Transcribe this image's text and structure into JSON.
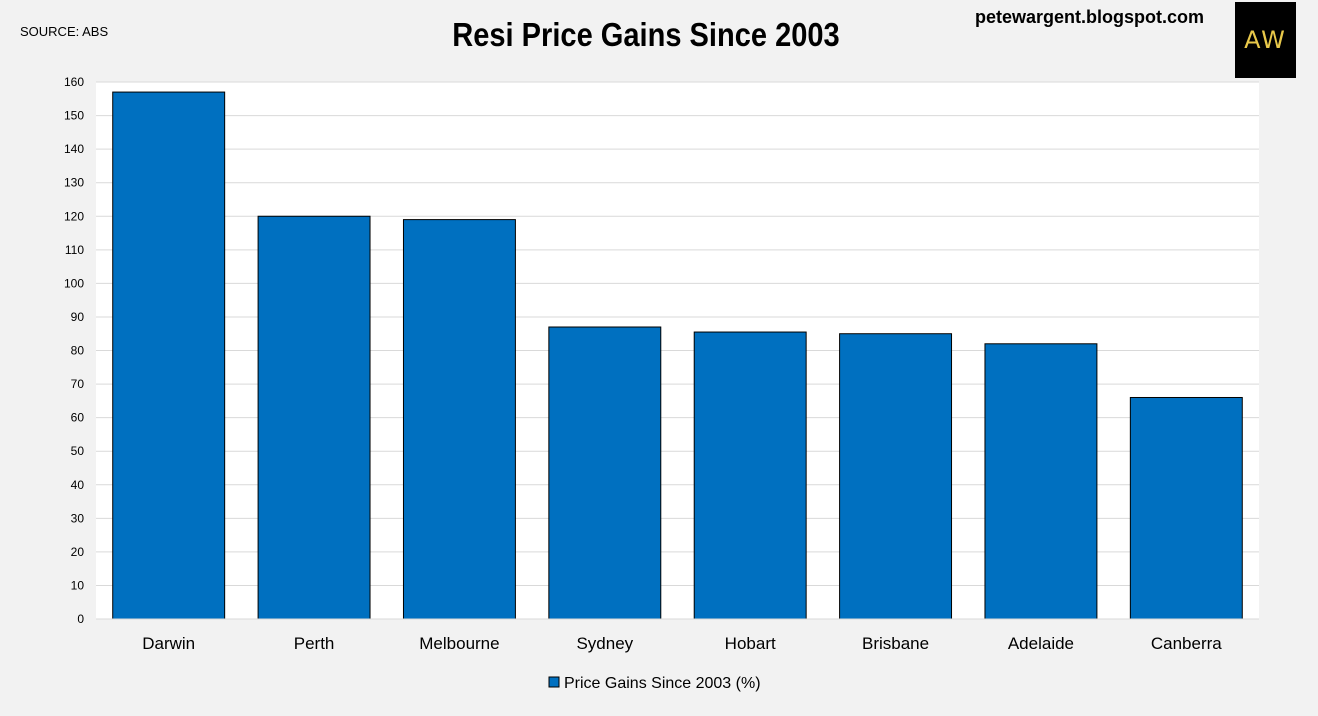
{
  "header": {
    "source": "SOURCE: ABS",
    "title": "Resi Price Gains Since 2003",
    "site": "petewargent.blogspot.com",
    "logo_text": "AW"
  },
  "colors": {
    "bar": "#0070c0",
    "bar_edge": "#000000",
    "grid": "#d9d9d9",
    "plot_bg": "#ffffff",
    "page_bg": "#f2f2f2",
    "logo_bg": "#000000",
    "logo_text": "#e8c84a"
  },
  "chart_data": {
    "type": "bar",
    "title": "Resi Price Gains Since 2003",
    "categories": [
      "Darwin",
      "Perth",
      "Melbourne",
      "Sydney",
      "Hobart",
      "Brisbane",
      "Adelaide",
      "Canberra"
    ],
    "series": [
      {
        "name": "Price Gains Since 2003 (%)",
        "values": [
          157,
          120,
          119,
          87,
          85.5,
          85,
          82,
          66
        ]
      }
    ],
    "xlabel": "",
    "ylabel": "",
    "ylim": [
      0,
      160
    ],
    "yticks": [
      0,
      10,
      20,
      30,
      40,
      50,
      60,
      70,
      80,
      90,
      100,
      110,
      120,
      130,
      140,
      150,
      160
    ],
    "grid": true,
    "legend_position": "bottom"
  }
}
